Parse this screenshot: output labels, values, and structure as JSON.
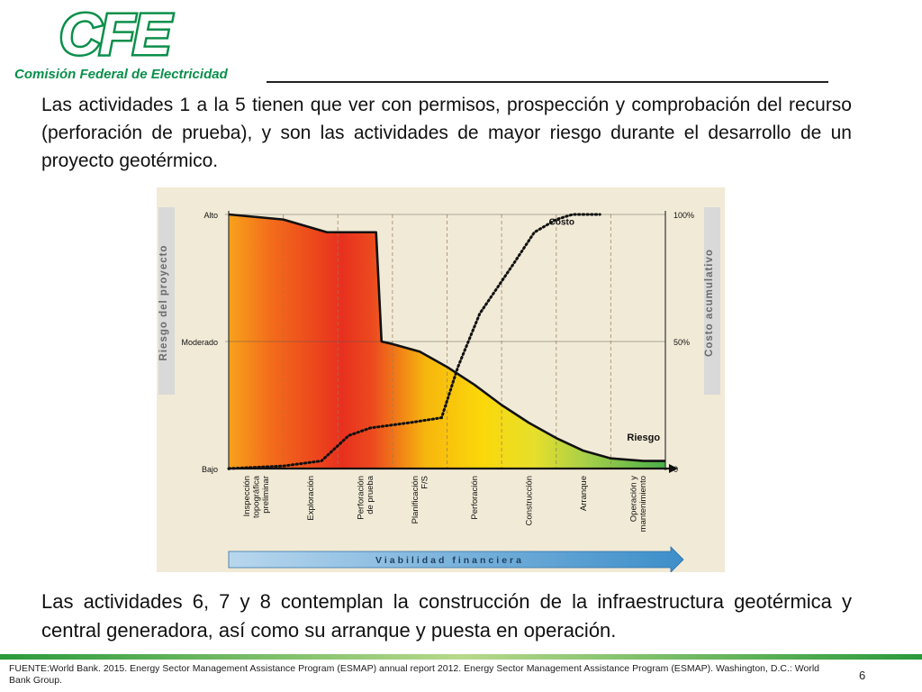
{
  "logo": {
    "mark": "CFE",
    "subtitle": "Comisión Federal de Electricidad"
  },
  "paragraph1": "Las actividades 1 a la 5 tienen que ver con permisos, prospección y comprobación del recurso (perforación de prueba), y son las actividades de mayor riesgo durante el desarrollo de un proyecto geotérmico.",
  "paragraph2": "Las actividades 6, 7 y 8 contemplan la construcción de la infraestructura geotérmica y central generadora, así como su arranque y puesta en operación.",
  "footer": {
    "source": "FUENTE:World Bank. 2015. Energy Sector Management Assistance Program (ESMAP) annual report 2012. Energy Sector Management Assistance Program (ESMAP). Washington, D.C.: World Bank Group.",
    "page_number": "6"
  },
  "chart_data": {
    "type": "line",
    "left_axis_label": "Riesgo del proyecto",
    "right_axis_label": "Costo acumulativo",
    "left_ticks": [
      "Alto",
      "Moderado",
      "Bajo"
    ],
    "right_ticks": [
      "100%",
      "50%",
      "0"
    ],
    "categories": [
      "Inspección topográfica preliminar",
      "Exploración",
      "Perforación de prueba",
      "Planificación F/S",
      "Perforación",
      "Construcción",
      "Arranque",
      "Operación y mantenimiento"
    ],
    "category_lines": [
      [
        "Inspección",
        "topográfica",
        "preliminar"
      ],
      [
        "Exploración"
      ],
      [
        "Perforación",
        "de prueba"
      ],
      [
        "Planificación",
        "F/S"
      ],
      [
        "Perforación"
      ],
      [
        "Construcción"
      ],
      [
        "Arranque"
      ],
      [
        "Operación y",
        "mantenimiento"
      ]
    ],
    "bottom_arrow_label": "Viabilidad financiera",
    "ylim": [
      0,
      100
    ],
    "x_range": [
      0,
      8
    ],
    "series": [
      {
        "name": "Riesgo",
        "style": "solid",
        "points": [
          [
            0,
            100
          ],
          [
            1,
            98
          ],
          [
            1.8,
            93
          ],
          [
            2.7,
            93
          ],
          [
            2.8,
            50
          ],
          [
            3,
            49
          ],
          [
            3.5,
            46
          ],
          [
            4,
            40
          ],
          [
            4.5,
            33
          ],
          [
            5,
            25
          ],
          [
            5.5,
            18
          ],
          [
            6,
            12
          ],
          [
            6.5,
            7
          ],
          [
            7,
            4
          ],
          [
            7.6,
            3
          ],
          [
            8,
            3
          ]
        ]
      },
      {
        "name": "Costo",
        "style": "dotted",
        "points": [
          [
            0,
            0
          ],
          [
            1,
            1
          ],
          [
            1.7,
            3
          ],
          [
            2.2,
            13
          ],
          [
            2.6,
            16
          ],
          [
            3.3,
            18
          ],
          [
            3.9,
            20
          ],
          [
            4.2,
            40
          ],
          [
            4.6,
            61
          ],
          [
            5.2,
            80
          ],
          [
            5.6,
            93
          ],
          [
            6,
            98
          ],
          [
            6.3,
            100
          ],
          [
            6.8,
            100
          ]
        ]
      }
    ]
  }
}
